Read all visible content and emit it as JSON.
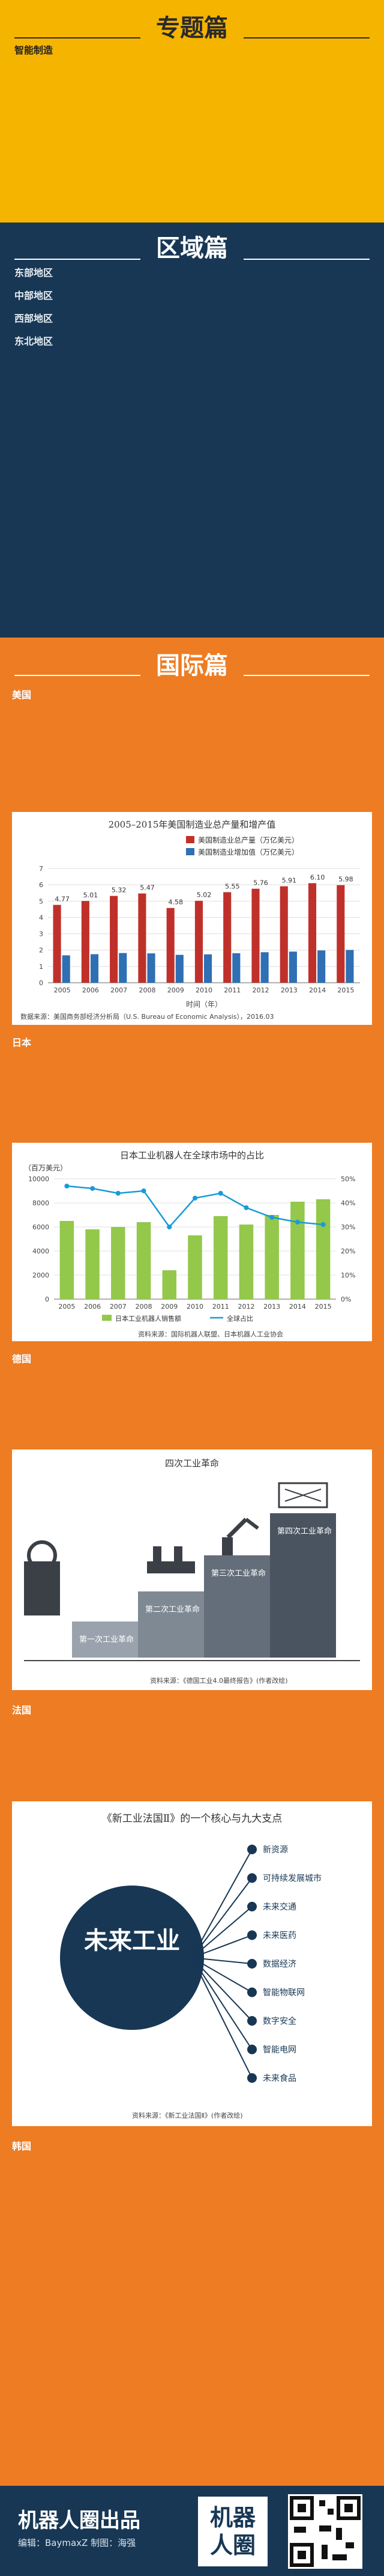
{
  "topic": {
    "title": "专题篇",
    "subhead": "智能制造",
    "paragraphs": [
      "",
      ""
    ]
  },
  "region": {
    "title": "区域篇",
    "areas": [
      {
        "name": "东部地区",
        "text": ""
      },
      {
        "name": "中部地区",
        "text": ""
      },
      {
        "name": "西部地区",
        "text": ""
      },
      {
        "name": "东北地区",
        "text": ""
      }
    ]
  },
  "intl": {
    "title": "国际篇",
    "usa": {
      "name": "美国",
      "text": "",
      "chart_data": {
        "type": "bar",
        "title": "2005–2015年美国制造业总产量和增产值",
        "legend": [
          "美国制造业总产量（万亿美元）",
          "美国制造业增加值（万亿美元）"
        ],
        "categories": [
          "2005",
          "2006",
          "2007",
          "2008",
          "2009",
          "2010",
          "2011",
          "2012",
          "2013",
          "2014",
          "2015"
        ],
        "series": [
          {
            "name": "美国制造业总产量（万亿美元）",
            "color": "#c0302a",
            "values": [
              4.77,
              5.01,
              5.32,
              5.47,
              4.58,
              5.02,
              5.55,
              5.76,
              5.91,
              6.1,
              5.98
            ]
          },
          {
            "name": "美国制造业增加值（万亿美元）",
            "color": "#2f6fb4",
            "values": [
              1.68,
              1.75,
              1.82,
              1.8,
              1.71,
              1.74,
              1.81,
              1.87,
              1.91,
              1.98,
              2.01
            ]
          }
        ],
        "value_labels": [
          "4.77",
          "5.01",
          "5.32",
          "5.47",
          "4.58",
          "5.02",
          "5.55",
          "5.76",
          "5.91",
          "6.10",
          "5.98"
        ],
        "ylim": [
          0,
          7
        ],
        "yticks": [
          "0",
          "1",
          "2",
          "3",
          "4",
          "5",
          "6",
          "7"
        ],
        "xlabel": "时间（年）",
        "source": "数据来源：美国商务部经济分析局（U.S. Bureau of Economic Analysis），2016.03"
      }
    },
    "japan": {
      "name": "日本",
      "text": "",
      "chart_data": {
        "type": "bar",
        "title": "日本工业机器人在全球市场中的占比",
        "ylabel": "（百万美元）",
        "legend": [
          "日本工业机器人销售额",
          "全球占比"
        ],
        "categories": [
          "2005",
          "2006",
          "2007",
          "2008",
          "2009",
          "2010",
          "2011",
          "2012",
          "2013",
          "2014",
          "2015"
        ],
        "series": [
          {
            "name": "日本工业机器人销售额",
            "color": "#93c84b",
            "values": [
              6500,
              5800,
              6000,
              6400,
              2400,
              5300,
              6900,
              6200,
              7000,
              8100,
              8300
            ]
          },
          {
            "name": "全球占比",
            "color": "#1a9bd7",
            "values": [
              0.47,
              0.46,
              0.44,
              0.45,
              0.3,
              0.42,
              0.44,
              0.38,
              0.34,
              0.32,
              0.31
            ]
          }
        ],
        "ylim": [
          0,
          10000
        ],
        "yticks": [
          "0",
          "2000",
          "4000",
          "6000",
          "8000",
          "10000"
        ],
        "y2ticks": [
          "0%",
          "10%",
          "20%",
          "30%",
          "40%",
          "50%"
        ],
        "source": "资料来源：国际机器人联盟、日本机器人工业协会"
      }
    },
    "germany": {
      "name": "德国",
      "text": "",
      "figure": {
        "title": "四次工业革命",
        "stages": [
          "第一次工业革命",
          "第二次工业革命",
          "第三次工业革命",
          "第四次工业革命"
        ],
        "source": "资料来源：《德国工业4.0最终报告》(作者改绘)"
      }
    },
    "france": {
      "name": "法国",
      "text": "",
      "figure": {
        "title": "《新工业法国Ⅱ》的一个核心与九大支点",
        "core": "未来工业",
        "pillars": [
          "新资源",
          "可持续发展城市",
          "未来交通",
          "未来医药",
          "数据经济",
          "智能物联网",
          "数字安全",
          "智能电网",
          "未来食品"
        ],
        "source": "资料来源：《新工业法国Ⅱ》(作者改绘)"
      }
    },
    "korea": {
      "name": "韩国",
      "text": ""
    }
  },
  "footer": {
    "brand": "机器人圈出品",
    "editor": "编辑：BaymaxZ  制图：海强",
    "logo_line1": "机器",
    "logo_line2": "人圈",
    "colors": {
      "navy": "#173754",
      "orange": "#ee7c22",
      "yellow": "#f5b400"
    }
  }
}
